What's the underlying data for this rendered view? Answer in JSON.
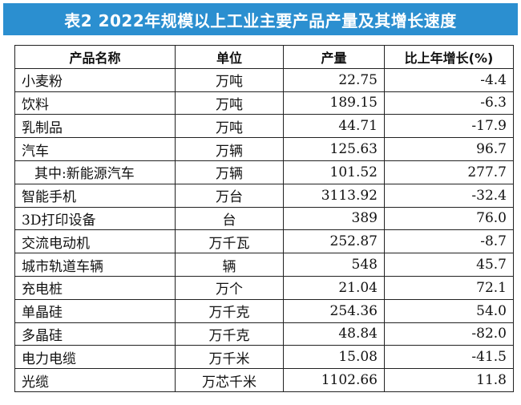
{
  "title": "表2 2022年规模以上工业主要产品产量及其增长速度",
  "headers": [
    "产品名称",
    "单位",
    "产量",
    "比上年增长(%)"
  ],
  "rows": [
    {
      "name": "小麦粉",
      "unit": "万吨",
      "output": "22.75",
      "growth": "-4.4",
      "sub": false
    },
    {
      "name": "饮料",
      "unit": "万吨",
      "output": "189.15",
      "growth": "-6.3",
      "sub": false
    },
    {
      "name": "乳制品",
      "unit": "万吨",
      "output": "44.71",
      "growth": "-17.9",
      "sub": false
    },
    {
      "name": "汽车",
      "unit": "万辆",
      "output": "125.63",
      "growth": "96.7",
      "sub": false
    },
    {
      "name": "其中:新能源汽车",
      "unit": "万辆",
      "output": "101.52",
      "growth": "277.7",
      "sub": true
    },
    {
      "name": "智能手机",
      "unit": "万台",
      "output": "3113.92",
      "growth": "-32.4",
      "sub": false
    },
    {
      "name": "3D打印设备",
      "unit": "台",
      "output": "389",
      "growth": "76.0",
      "sub": false
    },
    {
      "name": "交流电动机",
      "unit": "万千瓦",
      "output": "252.87",
      "growth": "-8.7",
      "sub": false
    },
    {
      "name": "城市轨道车辆",
      "unit": "辆",
      "output": "548",
      "growth": "45.7",
      "sub": false
    },
    {
      "name": "充电桩",
      "unit": "万个",
      "output": "21.04",
      "growth": "72.1",
      "sub": false
    },
    {
      "name": "单晶硅",
      "unit": "万千克",
      "output": "254.36",
      "growth": "54.0",
      "sub": false
    },
    {
      "name": "多晶硅",
      "unit": "万千克",
      "output": "48.84",
      "growth": "-82.0",
      "sub": false
    },
    {
      "name": "电力电缆",
      "unit": "万千米",
      "output": "15.08",
      "growth": "-41.5",
      "sub": false
    },
    {
      "name": "光缆",
      "unit": "万芯千米",
      "output": "1102.66",
      "growth": "11.8",
      "sub": false
    }
  ],
  "colors": {
    "banner": "#2b8fd0",
    "banner_text": "#ffffff",
    "grid": "#222222"
  }
}
